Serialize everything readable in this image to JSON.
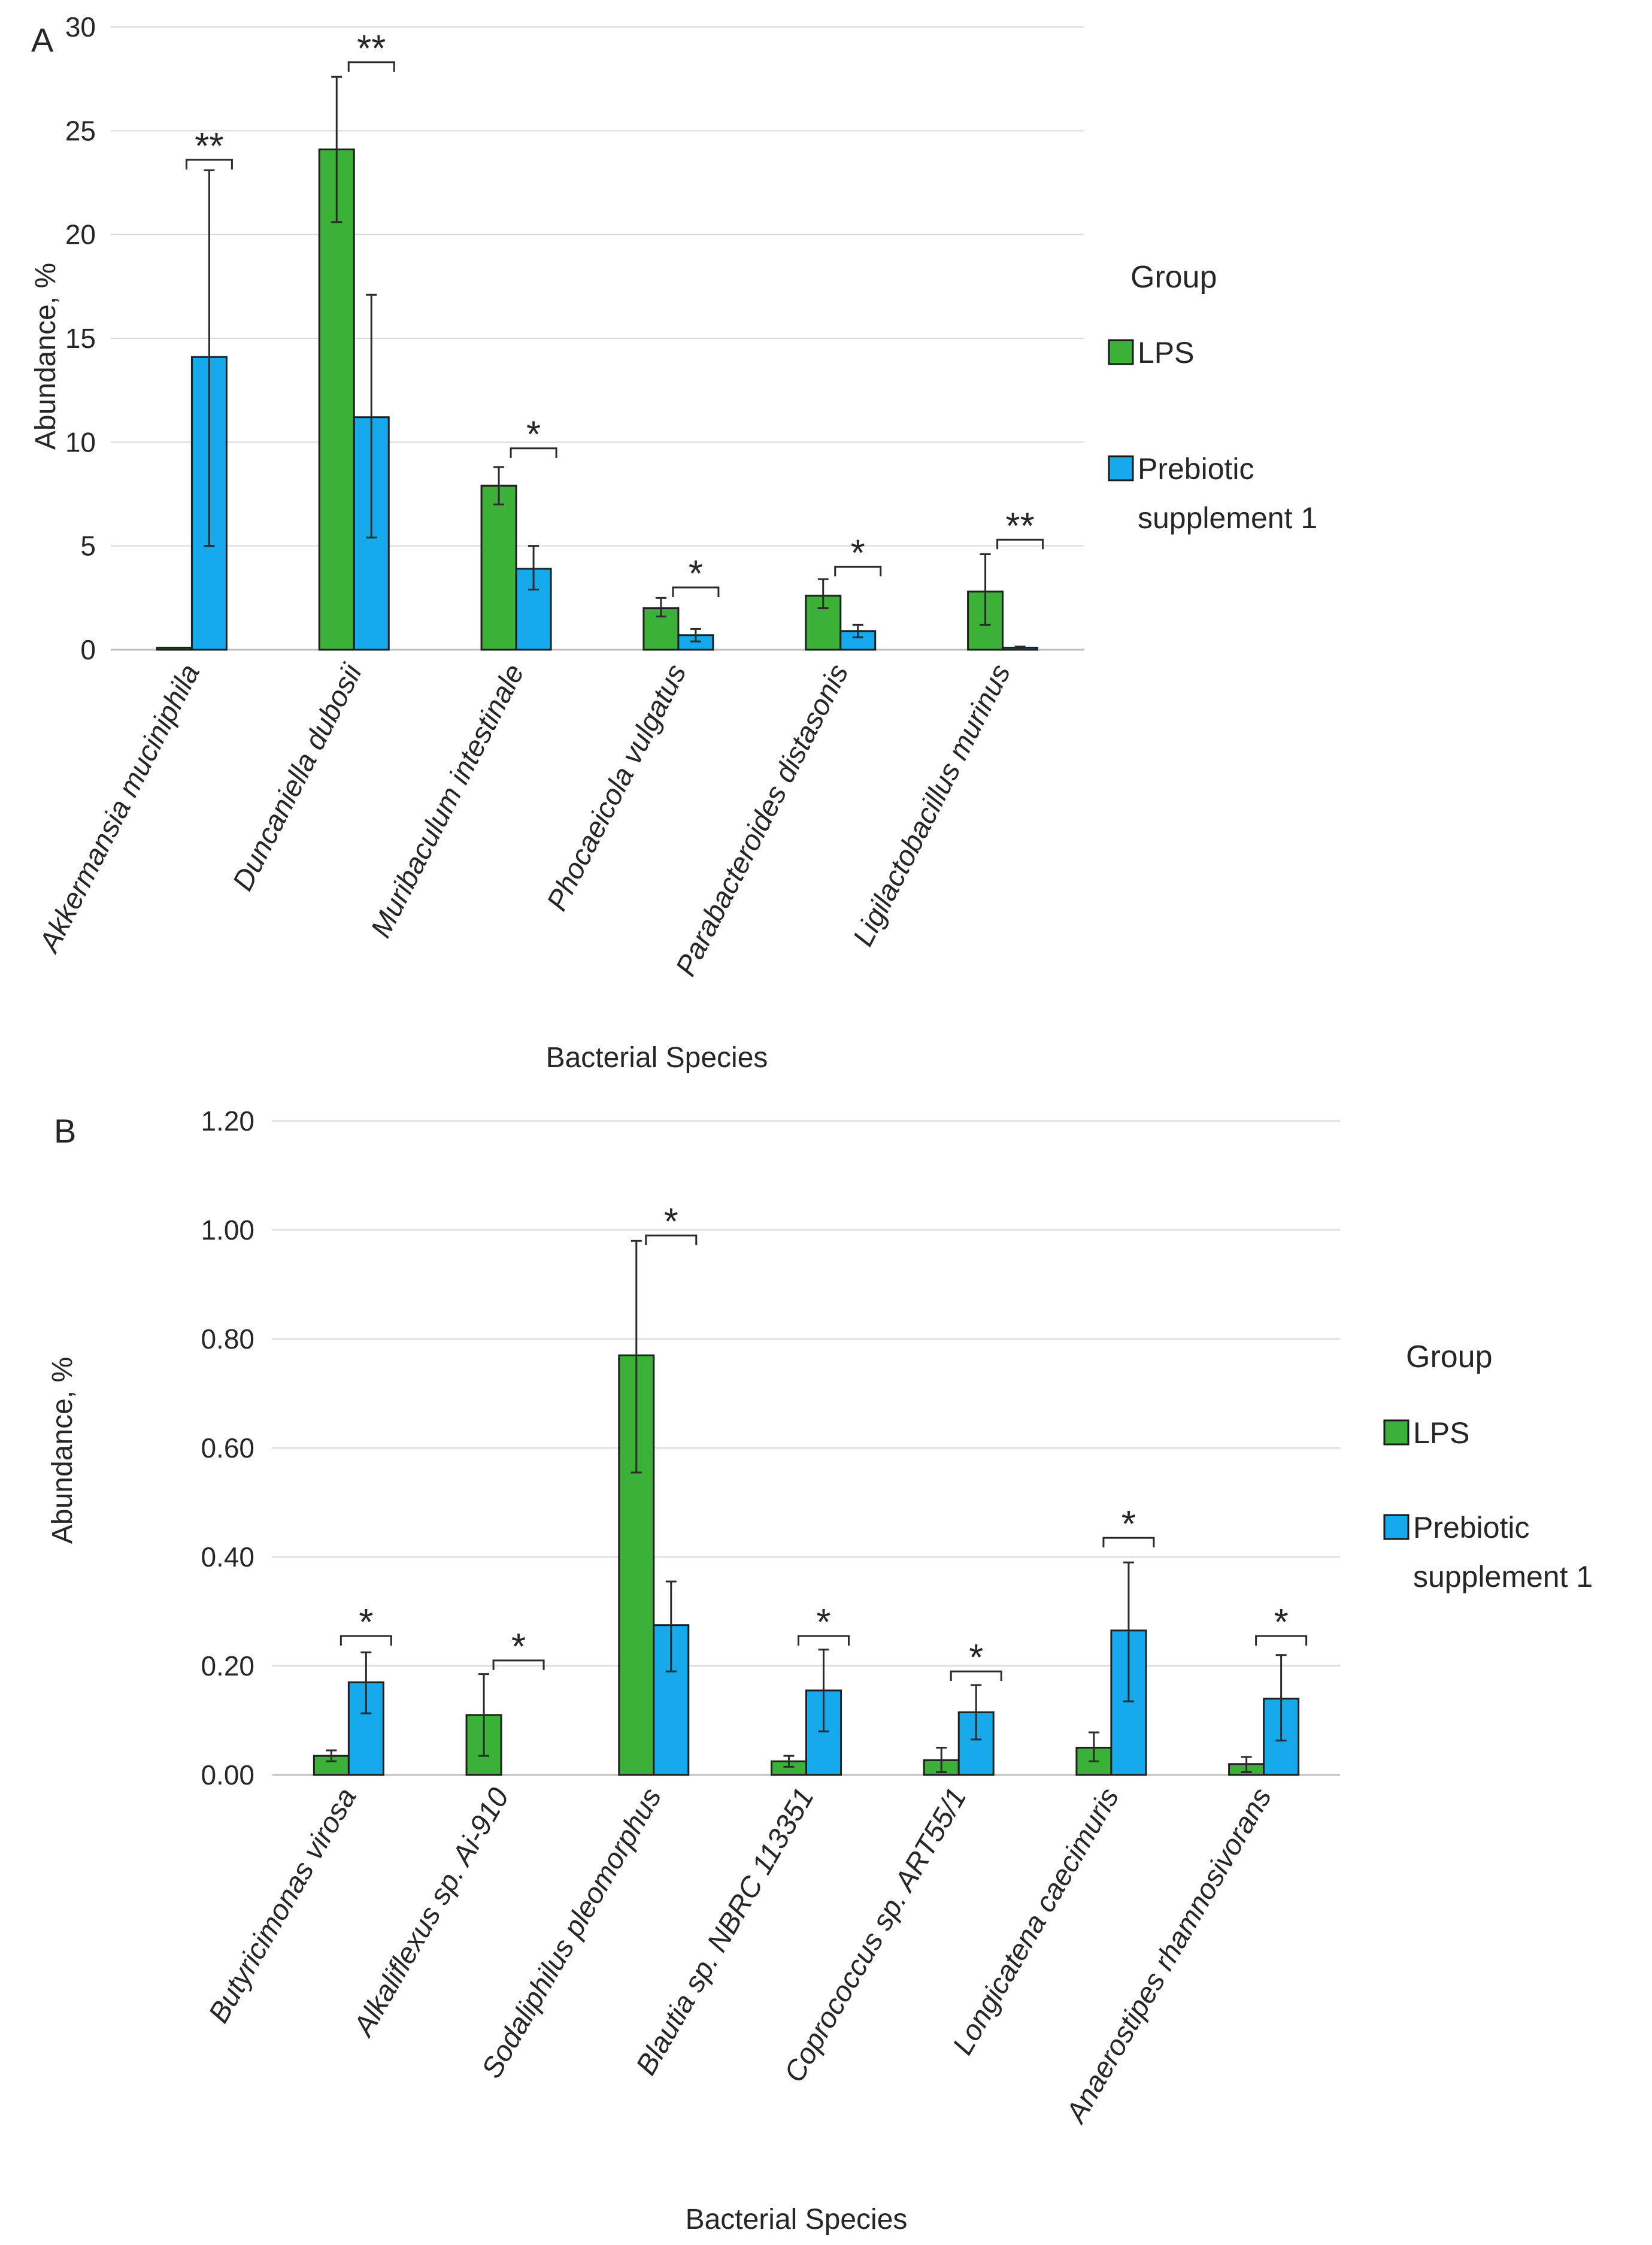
{
  "colors": {
    "lps": "#3cb138",
    "prebiotic": "#16a9ec",
    "grid": "#d9d9d9",
    "axis": "#bfbfbf",
    "text": "#262626",
    "error": "#2b2b2b"
  },
  "chart_data": [
    {
      "panel": "A",
      "type": "bar",
      "xlabel": "Bacterial Species",
      "ylabel": "Abundance, %",
      "ylim": [
        0,
        30
      ],
      "yticks": [
        0,
        5,
        10,
        15,
        20,
        25,
        30
      ],
      "ytick_labels": [
        "0",
        "5",
        "10",
        "15",
        "20",
        "25",
        "30"
      ],
      "legend": {
        "title": "Group",
        "position": "right",
        "entries": [
          "LPS",
          "Prebiotic supplement 1"
        ]
      },
      "categories": [
        "Akkermansia muciniphila",
        "Duncaniella dubosii",
        "Muribaculum intestinale",
        "Phocaeicola vulgatus",
        "Parabacteroides distasonis",
        "Ligilactobacillus murinus"
      ],
      "series": [
        {
          "name": "LPS",
          "values": [
            0.1,
            24.1,
            7.9,
            2.0,
            2.6,
            2.8
          ],
          "err_low": [
            0.1,
            20.6,
            7.0,
            1.6,
            2.0,
            1.2
          ],
          "err_high": [
            0.1,
            27.6,
            8.8,
            2.5,
            3.4,
            4.6
          ]
        },
        {
          "name": "Prebiotic supplement 1",
          "values": [
            14.1,
            11.2,
            3.9,
            0.7,
            0.9,
            0.1
          ],
          "err_low": [
            5.0,
            5.4,
            2.9,
            0.4,
            0.6,
            0.05
          ],
          "err_high": [
            23.1,
            17.1,
            5.0,
            1.0,
            1.2,
            0.15
          ]
        }
      ],
      "significance": [
        "**",
        "**",
        "*",
        "*",
        "*",
        "**"
      ],
      "bracket_y": [
        23.6,
        28.3,
        9.7,
        3.0,
        4.0,
        5.3
      ]
    },
    {
      "panel": "B",
      "type": "bar",
      "xlabel": "Bacterial Species",
      "ylabel": "Abundance, %",
      "ylim": [
        0,
        1.2
      ],
      "yticks": [
        0,
        0.2,
        0.4,
        0.6,
        0.8,
        1.0,
        1.2
      ],
      "ytick_labels": [
        "0.00",
        "0.20",
        "0.40",
        "0.60",
        "0.80",
        "1.00",
        "1.20"
      ],
      "legend": {
        "title": "Group",
        "position": "right",
        "entries": [
          "LPS",
          "Prebiotic supplement 1"
        ]
      },
      "categories": [
        "Butyricimonas virosa",
        "Alkaliflexus sp. Ai-910",
        "Sodaliphilus pleomorphus",
        "Blautia sp. NBRC 113351",
        "Coprococcus sp. ART55/1",
        "Longicatena caecimuris",
        "Anaerostipes rhamnosivorans"
      ],
      "series": [
        {
          "name": "LPS",
          "values": [
            0.035,
            0.11,
            0.77,
            0.025,
            0.027,
            0.05,
            0.02
          ],
          "err_low": [
            0.025,
            0.035,
            0.555,
            0.015,
            0.005,
            0.025,
            0.005
          ],
          "err_high": [
            0.045,
            0.185,
            0.98,
            0.035,
            0.05,
            0.078,
            0.033
          ]
        },
        {
          "name": "Prebiotic supplement 1",
          "values": [
            0.17,
            0,
            0.275,
            0.155,
            0.115,
            0.265,
            0.14
          ],
          "err_low": [
            0.113,
            0,
            0.19,
            0.08,
            0.065,
            0.135,
            0.063
          ],
          "err_high": [
            0.225,
            0,
            0.355,
            0.23,
            0.165,
            0.39,
            0.22
          ]
        }
      ],
      "significance": [
        "*",
        "*",
        "*",
        "*",
        "*",
        "*",
        "*"
      ],
      "bracket_y": [
        0.255,
        0.21,
        0.99,
        0.255,
        0.19,
        0.435,
        0.255
      ]
    }
  ]
}
